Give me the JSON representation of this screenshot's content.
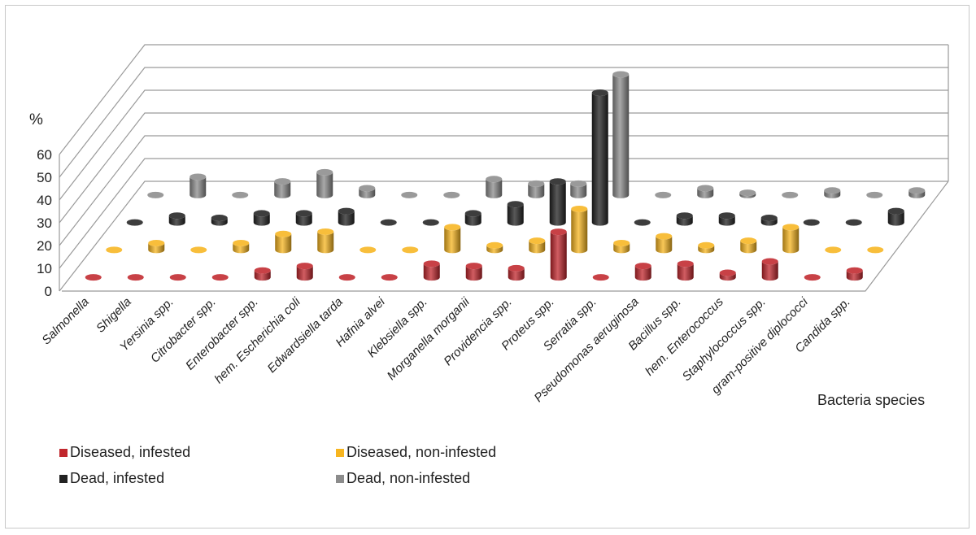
{
  "chart_data": {
    "type": "bar",
    "subtype": "3d-cylinder",
    "title": "",
    "ylabel": "%",
    "xlabel": "Bacteria species",
    "ylim": [
      0,
      60
    ],
    "yticks": [
      "0",
      "10",
      "20",
      "30",
      "40",
      "50",
      "60"
    ],
    "grid": true,
    "legend_position": "bottom-left",
    "categories": [
      "Salmonella",
      "Shigella",
      "Yersinia spp.",
      "Citrobacter spp.",
      "Enterobacter spp.",
      "hem. Escherichia coli",
      "Edwardsiella tarda",
      "Hafnia alvei",
      "Klebsiella spp.",
      "Morganella morganii",
      "Providencia spp.",
      "Proteus spp.",
      "Serratia spp.",
      "Pseudomonas aeruginosa",
      "Bacillus spp.",
      "hem. Enterococcus",
      "Staphylococcus spp.",
      "gram-positive diplococci",
      "Candida spp."
    ],
    "series": [
      {
        "name": "Diseased, infested",
        "color": "#c1272d",
        "values": [
          0,
          0,
          0,
          0,
          3,
          5,
          0,
          0,
          6,
          5,
          4,
          20,
          0,
          5,
          6,
          2,
          7,
          0,
          3
        ]
      },
      {
        "name": "Diseased, non-infested",
        "color": "#f7b520",
        "values": [
          0,
          3,
          0,
          3,
          7,
          8,
          0,
          0,
          10,
          2,
          4,
          18,
          3,
          6,
          2,
          4,
          10,
          0,
          0
        ]
      },
      {
        "name": "Dead, infested",
        "color": "#222222",
        "values": [
          0,
          3,
          2,
          4,
          4,
          5,
          0,
          0,
          4,
          8,
          18,
          57,
          0,
          3,
          3,
          2,
          0,
          0,
          5
        ]
      },
      {
        "name": "Dead, non-infested",
        "color": "#8c8c8c",
        "values": [
          0,
          8,
          0,
          6,
          10,
          3,
          0,
          0,
          7,
          5,
          5,
          53,
          0,
          3,
          1,
          0,
          2,
          0,
          2
        ]
      }
    ]
  }
}
